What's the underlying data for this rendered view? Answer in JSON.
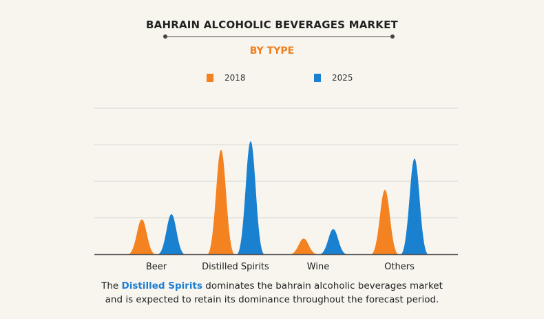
{
  "header": {
    "title": "BAHRAIN ALCOHOLIC BEVERAGES MARKET",
    "subtitle": "BY TYPE"
  },
  "colors": {
    "series_2018": "#f48220",
    "series_2025": "#1a80d0",
    "subtitle": "#f07f1c",
    "highlight": "#1a7fd4"
  },
  "chart_data": {
    "type": "area",
    "title": "BAHRAIN ALCOHOLIC BEVERAGES MARKET",
    "subtitle": "BY TYPE",
    "categories": [
      "Beer",
      "Distilled Spirits",
      "Wine",
      "Others"
    ],
    "series": [
      {
        "name": "2018",
        "values": [
          1.0,
          3.0,
          0.45,
          1.85
        ]
      },
      {
        "name": "2025",
        "values": [
          1.15,
          3.25,
          0.72,
          2.75
        ]
      }
    ],
    "ylim": [
      0,
      4.2
    ],
    "grid": true,
    "legend": "top-center",
    "xlabel": "",
    "ylabel": ""
  },
  "caption": {
    "prefix": "The ",
    "highlight": "Distilled Spirits",
    "line1_rest": " dominates the bahrain alcoholic beverages market",
    "line2": "and is expected to retain its dominance throughout the forecast period."
  }
}
